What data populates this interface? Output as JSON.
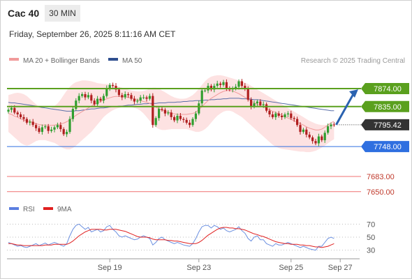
{
  "header": {
    "symbol": "Cac 40",
    "timeframe": "30 MIN",
    "datetime": "Friday, September 26, 2025 8:11:16 AM CET"
  },
  "legend": {
    "ma20_label": "MA 20 + Bollinger Bands",
    "ma50_label": "MA 50",
    "credit": "Research © 2025 Trading Central",
    "rsi_label": "RSI",
    "rsi_ma_label": "9MA"
  },
  "colors": {
    "bullish": "#2f9e2f",
    "bearish": "#b01f1f",
    "ma20": "#f19a9a",
    "bollinger_fill": "#fde2e2",
    "ma50": "#5a6fa8",
    "support_resistance": "#5aa01e",
    "current_price": "#333333",
    "target_line": "#2f6fe0",
    "stop_line": "#f07070",
    "rsi": "#6a8fe0",
    "rsi_ma": "#e02020",
    "arrow": "#2a62b0"
  },
  "chart_data": {
    "type": "candlestick",
    "price_scale": [
      7630,
      7915
    ],
    "x_ticks": [
      "Sep 19",
      "Sep 23",
      "Sep 25",
      "Sep 27"
    ],
    "levels": [
      {
        "value": 7874.0,
        "label": "7874.00",
        "kind": "resistance"
      },
      {
        "value": 7835.0,
        "label": "7835.00",
        "kind": "pivot"
      },
      {
        "value": 7795.42,
        "label": "7795.42",
        "kind": "last"
      },
      {
        "value": 7748.0,
        "label": "7748.00",
        "kind": "target"
      },
      {
        "value": 7683.0,
        "label": "7683.00",
        "kind": "stop"
      },
      {
        "value": 7650.0,
        "label": "7650.00",
        "kind": "stop"
      }
    ],
    "candles_close": [
      7828,
      7832,
      7822,
      7818,
      7812,
      7808,
      7800,
      7802,
      7795,
      7788,
      7780,
      7790,
      7792,
      7782,
      7785,
      7790,
      7795,
      7786,
      7775,
      7780,
      7808,
      7830,
      7848,
      7858,
      7862,
      7855,
      7860,
      7848,
      7840,
      7852,
      7848,
      7858,
      7875,
      7882,
      7880,
      7872,
      7860,
      7855,
      7862,
      7860,
      7852,
      7846,
      7848,
      7855,
      7855,
      7852,
      7858,
      7795,
      7810,
      7830,
      7828,
      7820,
      7822,
      7812,
      7805,
      7815,
      7808,
      7806,
      7800,
      7795,
      7808,
      7820,
      7842,
      7870,
      7870,
      7880,
      7872,
      7880,
      7885,
      7882,
      7888,
      7875,
      7872,
      7874,
      7878,
      7890,
      7880,
      7875,
      7850,
      7835,
      7842,
      7846,
      7838,
      7840,
      7826,
      7818,
      7812,
      7820,
      7815,
      7812,
      7818,
      7820,
      7810,
      7808,
      7795,
      7780,
      7785,
      7774,
      7768,
      7760,
      7755,
      7770,
      7762,
      7778,
      7792,
      7796,
      7795
    ],
    "ma20": [
      7820,
      7818,
      7814,
      7812,
      7808,
      7806,
      7804,
      7803,
      7800,
      7798,
      7796,
      7795,
      7795,
      7794,
      7794,
      7795,
      7796,
      7797,
      7799,
      7802,
      7806,
      7811,
      7816,
      7820,
      7824,
      7828,
      7832,
      7836,
      7840,
      7843,
      7846,
      7849,
      7852,
      7854,
      7856,
      7857,
      7857,
      7857,
      7856,
      7855,
      7854,
      7852,
      7850,
      7848,
      7846,
      7844,
      7842,
      7838,
      7834,
      7830,
      7827,
      7825,
      7823,
      7821,
      7819,
      7818,
      7818,
      7818,
      7818,
      7819,
      7820,
      7823,
      7828,
      7835,
      7842,
      7848,
      7853,
      7857,
      7861,
      7865,
      7868,
      7870,
      7870,
      7869,
      7866,
      7863,
      7859,
      7855,
      7851,
      7847,
      7843,
      7840,
      7837,
      7834,
      7831,
      7828,
      7825,
      7822,
      7819,
      7816,
      7813,
      7810,
      7807,
      7804,
      7801,
      7798,
      7795,
      7791,
      7788,
      7786,
      7784,
      7784,
      7786,
      7790,
      7795,
      7800,
      7803
    ],
    "bollinger_upper": [
      7860,
      7862,
      7864,
      7865,
      7864,
      7862,
      7858,
      7852,
      7846,
      7840,
      7835,
      7832,
      7830,
      7830,
      7832,
      7836,
      7842,
      7850,
      7860,
      7870,
      7878,
      7884,
      7888,
      7890,
      7892,
      7892,
      7891,
      7890,
      7888,
      7886,
      7885,
      7884,
      7884,
      7883,
      7882,
      7880,
      7878,
      7876,
      7874,
      7872,
      7870,
      7869,
      7868,
      7868,
      7869,
      7871,
      7874,
      7876,
      7876,
      7874,
      7870,
      7866,
      7862,
      7858,
      7855,
      7853,
      7852,
      7852,
      7853,
      7856,
      7860,
      7866,
      7874,
      7882,
      7890,
      7896,
      7900,
      7902,
      7903,
      7903,
      7902,
      7900,
      7898,
      7896,
      7894,
      7892,
      7890,
      7887,
      7884,
      7880,
      7876,
      7872,
      7868,
      7864,
      7860,
      7856,
      7852,
      7848,
      7844,
      7840,
      7836,
      7832,
      7828,
      7824,
      7820,
      7816,
      7812,
      7808,
      7804,
      7801,
      7798,
      7796,
      7795,
      7795,
      7796,
      7798,
      7800
    ],
    "bollinger_lower": [
      7780,
      7774,
      7768,
      7762,
      7756,
      7752,
      7750,
      7752,
      7756,
      7760,
      7762,
      7762,
      7762,
      7760,
      7758,
      7756,
      7752,
      7748,
      7744,
      7742,
      7742,
      7745,
      7750,
      7756,
      7762,
      7768,
      7774,
      7780,
      7788,
      7796,
      7804,
      7812,
      7818,
      7823,
      7827,
      7830,
      7832,
      7834,
      7835,
      7835,
      7834,
      7832,
      7830,
      7826,
      7820,
      7812,
      7804,
      7796,
      7790,
      7786,
      7784,
      7784,
      7785,
      7786,
      7786,
      7786,
      7786,
      7786,
      7786,
      7784,
      7782,
      7780,
      7780,
      7782,
      7786,
      7792,
      7800,
      7808,
      7815,
      7820,
      7824,
      7826,
      7826,
      7824,
      7820,
      7816,
      7812,
      7806,
      7800,
      7794,
      7788,
      7782,
      7776,
      7770,
      7764,
      7758,
      7752,
      7748,
      7745,
      7743,
      7742,
      7741,
      7740,
      7739,
      7738,
      7737,
      7737,
      7736,
      7736,
      7737,
      7739,
      7742,
      7746,
      7750,
      7755,
      7760,
      7764
    ],
    "ma50": [
      7844,
      7843,
      7843,
      7842,
      7841,
      7840,
      7839,
      7838,
      7837,
      7836,
      7834,
      7833,
      7832,
      7831,
      7830,
      7829,
      7828,
      7827,
      7826,
      7825,
      7825,
      7825,
      7826,
      7826,
      7827,
      7828,
      7829,
      7830,
      7830,
      7831,
      7832,
      7832,
      7833,
      7834,
      7835,
      7835,
      7836,
      7836,
      7837,
      7838,
      7838,
      7839,
      7840,
      7840,
      7841,
      7841,
      7842,
      7842,
      7842,
      7843,
      7843,
      7843,
      7844,
      7844,
      7844,
      7845,
      7845,
      7846,
      7846,
      7847,
      7847,
      7848,
      7848,
      7848,
      7849,
      7849,
      7850,
      7850,
      7851,
      7851,
      7852,
      7852,
      7853,
      7853,
      7853,
      7853,
      7852,
      7852,
      7852,
      7851,
      7850,
      7850,
      7849,
      7848,
      7847,
      7846,
      7845,
      7844,
      7843,
      7842,
      7841,
      7840,
      7839,
      7838,
      7837,
      7836,
      7835,
      7834,
      7833,
      7832,
      7831,
      7830,
      7829,
      7828,
      7827,
      7826,
      7826
    ],
    "rsi": [
      42,
      40,
      38,
      36,
      37,
      35,
      34,
      36,
      38,
      40,
      37,
      39,
      41,
      38,
      40,
      42,
      40,
      38,
      36,
      40,
      52,
      62,
      68,
      70,
      66,
      62,
      65,
      58,
      60,
      62,
      58,
      60,
      66,
      68,
      62,
      58,
      52,
      50,
      52,
      50,
      48,
      46,
      47,
      50,
      52,
      50,
      48,
      38,
      42,
      48,
      50,
      46,
      44,
      42,
      40,
      42,
      40,
      38,
      37,
      36,
      40,
      48,
      58,
      66,
      68,
      68,
      64,
      68,
      66,
      62,
      64,
      60,
      58,
      60,
      62,
      66,
      60,
      56,
      48,
      44,
      50,
      52,
      46,
      46,
      40,
      38,
      36,
      40,
      38,
      38,
      40,
      42,
      40,
      38,
      36,
      34,
      36,
      34,
      32,
      31,
      30,
      36,
      36,
      42,
      48,
      50,
      48
    ],
    "rsi_ma": [
      40,
      40,
      39,
      38,
      38,
      37,
      37,
      37,
      37,
      37,
      37,
      37,
      38,
      38,
      38,
      39,
      39,
      39,
      39,
      39,
      41,
      44,
      48,
      52,
      55,
      58,
      60,
      62,
      62,
      62,
      62,
      61,
      61,
      62,
      62,
      62,
      61,
      60,
      59,
      57,
      55,
      53,
      51,
      50,
      50,
      50,
      49,
      47,
      46,
      46,
      46,
      46,
      45,
      45,
      44,
      44,
      43,
      42,
      41,
      40,
      40,
      40,
      42,
      45,
      49,
      53,
      56,
      59,
      62,
      64,
      65,
      65,
      64,
      64,
      63,
      63,
      62,
      61,
      59,
      57,
      55,
      54,
      52,
      51,
      49,
      47,
      45,
      43,
      42,
      41,
      40,
      40,
      39,
      39,
      39,
      38,
      38,
      37,
      37,
      36,
      35,
      35,
      34,
      35,
      36,
      38,
      40
    ],
    "rsi_scale": [
      20,
      80
    ],
    "rsi_ticks": [
      70,
      50,
      30
    ]
  }
}
